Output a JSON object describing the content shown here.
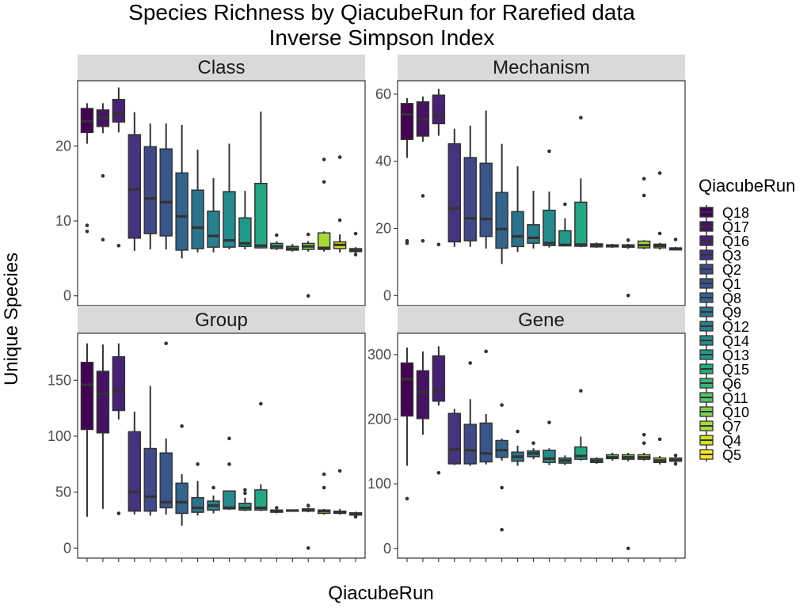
{
  "chart_data": {
    "type": "box",
    "title": "Species Richness by QiacubeRun for Rarefied data",
    "subtitle": "Inverse Simpson Index",
    "xlabel": "QiacubeRun",
    "ylabel": "Unique Species",
    "legend": {
      "title": "QiacubeRun",
      "position": "right",
      "entries": [
        {
          "name": "Q18",
          "color": "#440154"
        },
        {
          "name": "Q17",
          "color": "#471264"
        },
        {
          "name": "Q16",
          "color": "#482173"
        },
        {
          "name": "Q3",
          "color": "#45337f"
        },
        {
          "name": "Q2",
          "color": "#3e4a89"
        },
        {
          "name": "Q1",
          "color": "#3a548c"
        },
        {
          "name": "Q8",
          "color": "#32648e"
        },
        {
          "name": "Q9",
          "color": "#2c728e"
        },
        {
          "name": "Q12",
          "color": "#27808e"
        },
        {
          "name": "Q14",
          "color": "#228c8d"
        },
        {
          "name": "Q13",
          "color": "#1f9a8a"
        },
        {
          "name": "Q15",
          "color": "#22a884"
        },
        {
          "name": "Q6",
          "color": "#35b779"
        },
        {
          "name": "Q11",
          "color": "#54c568"
        },
        {
          "name": "Q10",
          "color": "#7ad151"
        },
        {
          "name": "Q7",
          "color": "#a5db36"
        },
        {
          "name": "Q4",
          "color": "#d2e21b"
        },
        {
          "name": "Q5",
          "color": "#fde725"
        }
      ]
    },
    "facets": [
      {
        "name": "Class",
        "ylim": [
          -1.3,
          28.7
        ],
        "yticks": [
          0,
          10,
          20
        ],
        "boxes": [
          {
            "fill": "#440154",
            "q1": 21.8,
            "med": 23.3,
            "q3": 25.0,
            "lo": 20.3,
            "hi": 25.7,
            "out": [
              9.4,
              8.6
            ]
          },
          {
            "fill": "#471264",
            "q1": 22.6,
            "med": 23.8,
            "q3": 24.8,
            "lo": 21.7,
            "hi": 25.7,
            "out": [
              16.0,
              7.5
            ]
          },
          {
            "fill": "#482173",
            "q1": 23.2,
            "med": 24.3,
            "q3": 26.2,
            "lo": 21.8,
            "hi": 27.8,
            "out": [
              6.7
            ]
          },
          {
            "fill": "#45337f",
            "q1": 7.7,
            "med": 14.2,
            "q3": 21.5,
            "lo": 6.0,
            "hi": 24.5,
            "out": []
          },
          {
            "fill": "#3e4a89",
            "q1": 8.3,
            "med": 13.0,
            "q3": 19.9,
            "lo": 6.2,
            "hi": 23.0,
            "out": []
          },
          {
            "fill": "#3a548c",
            "q1": 8.0,
            "med": 12.5,
            "q3": 19.6,
            "lo": 6.2,
            "hi": 23.0,
            "out": []
          },
          {
            "fill": "#32648e",
            "q1": 6.1,
            "med": 10.6,
            "q3": 16.4,
            "lo": 5.0,
            "hi": 22.8,
            "out": []
          },
          {
            "fill": "#2c728e",
            "q1": 6.3,
            "med": 9.1,
            "q3": 14.1,
            "lo": 5.8,
            "hi": 19.5,
            "out": []
          },
          {
            "fill": "#27808e",
            "q1": 6.5,
            "med": 8.0,
            "q3": 11.3,
            "lo": 5.8,
            "hi": 15.7,
            "out": []
          },
          {
            "fill": "#228c8d",
            "q1": 6.5,
            "med": 7.4,
            "q3": 13.9,
            "lo": 6.2,
            "hi": 20.3,
            "out": []
          },
          {
            "fill": "#1f9a8a",
            "q1": 6.6,
            "med": 7.0,
            "q3": 10.4,
            "lo": 6.2,
            "hi": 14.0,
            "out": []
          },
          {
            "fill": "#22a884",
            "q1": 6.4,
            "med": 6.7,
            "q3": 15.0,
            "lo": 6.3,
            "hi": 24.6,
            "out": []
          },
          {
            "fill": "#35b779",
            "q1": 6.3,
            "med": 6.6,
            "q3": 7.0,
            "lo": 6.1,
            "hi": 7.3,
            "out": [
              8.1
            ]
          },
          {
            "fill": "#54c568",
            "q1": 6.1,
            "med": 6.3,
            "q3": 6.6,
            "lo": 5.9,
            "hi": 6.9,
            "out": []
          },
          {
            "fill": "#7ad151",
            "q1": 6.2,
            "med": 6.6,
            "q3": 7.0,
            "lo": 5.9,
            "hi": 7.3,
            "out": [
              8.2,
              0
            ]
          },
          {
            "fill": "#a5db36",
            "q1": 6.2,
            "med": 6.4,
            "q3": 8.4,
            "lo": 5.9,
            "hi": 8.6,
            "out": [
              18.2,
              15.2
            ]
          },
          {
            "fill": "#d2e21b",
            "q1": 6.3,
            "med": 6.8,
            "q3": 7.2,
            "lo": 5.8,
            "hi": 8.2,
            "out": [
              18.5,
              10.1
            ]
          },
          {
            "fill": "#fde725",
            "q1": 5.9,
            "med": 6.1,
            "q3": 6.3,
            "lo": 5.6,
            "hi": 6.5,
            "out": [
              8.3,
              5.5
            ]
          }
        ]
      },
      {
        "name": "Mechanism",
        "ylim": [
          -3,
          64
        ],
        "yticks": [
          0,
          20,
          40,
          60
        ],
        "boxes": [
          {
            "fill": "#440154",
            "q1": 46.5,
            "med": 54.0,
            "q3": 57.2,
            "lo": 41.0,
            "hi": 58.8,
            "out": [
              16.3,
              15.6
            ]
          },
          {
            "fill": "#471264",
            "q1": 47.5,
            "med": 52.5,
            "q3": 57.7,
            "lo": 45.8,
            "hi": 59.3,
            "out": [
              29.7,
              16.3
            ]
          },
          {
            "fill": "#482173",
            "q1": 51.2,
            "med": 53.7,
            "q3": 59.7,
            "lo": 47.6,
            "hi": 61.6,
            "out": [
              15.2
            ]
          },
          {
            "fill": "#45337f",
            "q1": 16.0,
            "med": 26.0,
            "q3": 45.2,
            "lo": 14.5,
            "hi": 49.7,
            "out": []
          },
          {
            "fill": "#3e4a89",
            "q1": 16.3,
            "med": 23.0,
            "q3": 41.1,
            "lo": 14.5,
            "hi": 50.6,
            "out": []
          },
          {
            "fill": "#3a548c",
            "q1": 17.6,
            "med": 22.8,
            "q3": 39.4,
            "lo": 14.0,
            "hi": 55.1,
            "out": []
          },
          {
            "fill": "#32648e",
            "q1": 14.1,
            "med": 19.8,
            "q3": 30.7,
            "lo": 9.4,
            "hi": 45.2,
            "out": []
          },
          {
            "fill": "#2c728e",
            "q1": 14.6,
            "med": 17.6,
            "q3": 25.0,
            "lo": 13.0,
            "hi": 38.5,
            "out": []
          },
          {
            "fill": "#27808e",
            "q1": 15.6,
            "med": 17.2,
            "q3": 21.1,
            "lo": 14.0,
            "hi": 31.2,
            "out": []
          },
          {
            "fill": "#228c8d",
            "q1": 14.9,
            "med": 15.6,
            "q3": 25.4,
            "lo": 14.3,
            "hi": 31.0,
            "out": [
              43.0
            ]
          },
          {
            "fill": "#1f9a8a",
            "q1": 14.8,
            "med": 15.1,
            "q3": 19.3,
            "lo": 14.6,
            "hi": 23.0,
            "out": [
              27.2
            ]
          },
          {
            "fill": "#22a884",
            "q1": 14.7,
            "med": 15.2,
            "q3": 27.8,
            "lo": 14.4,
            "hi": 34.9,
            "out": [
              53.0
            ]
          },
          {
            "fill": "#35b779",
            "q1": 14.5,
            "med": 15.0,
            "q3": 15.4,
            "lo": 14.2,
            "hi": 15.8,
            "out": []
          },
          {
            "fill": "#54c568",
            "q1": 14.5,
            "med": 14.8,
            "q3": 15.1,
            "lo": 14.2,
            "hi": 15.4,
            "out": []
          },
          {
            "fill": "#7ad151",
            "q1": 14.4,
            "med": 14.7,
            "q3": 15.1,
            "lo": 13.9,
            "hi": 15.4,
            "out": [
              16.5,
              0
            ]
          },
          {
            "fill": "#a5db36",
            "q1": 14.2,
            "med": 15.0,
            "q3": 16.2,
            "lo": 13.8,
            "hi": 16.5,
            "out": [
              34.8,
              29.8
            ]
          },
          {
            "fill": "#d2e21b",
            "q1": 14.2,
            "med": 14.8,
            "q3": 15.3,
            "lo": 13.7,
            "hi": 15.7,
            "out": [
              36.5,
              18.5
            ]
          },
          {
            "fill": "#fde725",
            "q1": 13.6,
            "med": 13.9,
            "q3": 14.2,
            "lo": 13.4,
            "hi": 14.5,
            "out": [
              16.7
            ]
          }
        ]
      },
      {
        "name": "Group",
        "ylim": [
          -9,
          192
        ],
        "yticks": [
          0,
          50,
          100,
          150
        ],
        "boxes": [
          {
            "fill": "#440154",
            "q1": 106,
            "med": 146,
            "q3": 166,
            "lo": 28,
            "hi": 183,
            "out": []
          },
          {
            "fill": "#471264",
            "q1": 103,
            "med": 138,
            "q3": 158,
            "lo": 35,
            "hi": 182,
            "out": []
          },
          {
            "fill": "#482173",
            "q1": 123,
            "med": 141,
            "q3": 171,
            "lo": 115,
            "hi": 183,
            "out": [
              31
            ]
          },
          {
            "fill": "#45337f",
            "q1": 33,
            "med": 50,
            "q3": 104,
            "lo": 30,
            "hi": 122,
            "out": []
          },
          {
            "fill": "#3e4a89",
            "q1": 33,
            "med": 46,
            "q3": 89,
            "lo": 29,
            "hi": 145,
            "out": []
          },
          {
            "fill": "#3a548c",
            "q1": 36,
            "med": 41,
            "q3": 85,
            "lo": 30,
            "hi": 98,
            "out": [
              183
            ]
          },
          {
            "fill": "#32648e",
            "q1": 31,
            "med": 41,
            "q3": 58,
            "lo": 20,
            "hi": 66,
            "out": [
              109
            ]
          },
          {
            "fill": "#2c728e",
            "q1": 32,
            "med": 36,
            "q3": 45,
            "lo": 29,
            "hi": 60,
            "out": [
              75
            ]
          },
          {
            "fill": "#27808e",
            "q1": 34,
            "med": 38,
            "q3": 42,
            "lo": 31,
            "hi": 47,
            "out": [
              54
            ]
          },
          {
            "fill": "#228c8d",
            "q1": 35,
            "med": 36,
            "q3": 51,
            "lo": 34,
            "hi": 51,
            "out": [
              98,
              75
            ]
          },
          {
            "fill": "#1f9a8a",
            "q1": 34,
            "med": 36,
            "q3": 40,
            "lo": 33,
            "hi": 45,
            "out": [
              52,
              49
            ]
          },
          {
            "fill": "#22a884",
            "q1": 34,
            "med": 36,
            "q3": 52,
            "lo": 33,
            "hi": 57,
            "out": [
              129
            ]
          },
          {
            "fill": "#35b779",
            "q1": 32,
            "med": 33,
            "q3": 34,
            "lo": 31,
            "hi": 34.5,
            "out": [
              36
            ]
          },
          {
            "fill": "#54c568",
            "q1": 33,
            "med": 33.5,
            "q3": 34,
            "lo": 32.5,
            "hi": 34.5,
            "out": []
          },
          {
            "fill": "#7ad151",
            "q1": 33,
            "med": 34,
            "q3": 35,
            "lo": 32,
            "hi": 36,
            "out": [
              38,
              0
            ]
          },
          {
            "fill": "#a5db36",
            "q1": 31,
            "med": 33,
            "q3": 34,
            "lo": 30,
            "hi": 35,
            "out": [
              66,
              54
            ]
          },
          {
            "fill": "#d2e21b",
            "q1": 31,
            "med": 32,
            "q3": 33,
            "lo": 30,
            "hi": 35,
            "out": [
              69
            ]
          },
          {
            "fill": "#fde725",
            "q1": 29.5,
            "med": 30.5,
            "q3": 31.5,
            "lo": 28.5,
            "hi": 32.5,
            "out": [
              28
            ]
          }
        ]
      },
      {
        "name": "Gene",
        "ylim": [
          -15,
          333
        ],
        "yticks": [
          0,
          100,
          200,
          300
        ],
        "boxes": [
          {
            "fill": "#440154",
            "q1": 205,
            "med": 262,
            "q3": 287,
            "lo": 128,
            "hi": 311,
            "out": [
              77
            ]
          },
          {
            "fill": "#471264",
            "q1": 201,
            "med": 242,
            "q3": 275,
            "lo": 176,
            "hi": 305,
            "out": []
          },
          {
            "fill": "#482173",
            "q1": 228,
            "med": 244,
            "q3": 298,
            "lo": 221,
            "hi": 313,
            "out": [
              117
            ]
          },
          {
            "fill": "#45337f",
            "q1": 131,
            "med": 153,
            "q3": 209,
            "lo": 129,
            "hi": 216,
            "out": []
          },
          {
            "fill": "#3e4a89",
            "q1": 131,
            "med": 152,
            "q3": 192,
            "lo": 128,
            "hi": 231,
            "out": [
              287
            ]
          },
          {
            "fill": "#3a548c",
            "q1": 134,
            "med": 147,
            "q3": 194,
            "lo": 130,
            "hi": 208,
            "out": [
              305
            ]
          },
          {
            "fill": "#32648e",
            "q1": 141,
            "med": 152,
            "q3": 167,
            "lo": 136,
            "hi": 170,
            "out": [
              222,
              94,
              29
            ]
          },
          {
            "fill": "#2c728e",
            "q1": 135,
            "med": 142,
            "q3": 149,
            "lo": 128,
            "hi": 159,
            "out": [
              181
            ]
          },
          {
            "fill": "#27808e",
            "q1": 142,
            "med": 147,
            "q3": 151,
            "lo": 138,
            "hi": 155,
            "out": [
              163
            ]
          },
          {
            "fill": "#228c8d",
            "q1": 133,
            "med": 139,
            "q3": 152,
            "lo": 129,
            "hi": 155,
            "out": [
              195
            ]
          },
          {
            "fill": "#1f9a8a",
            "q1": 132,
            "med": 136,
            "q3": 140,
            "lo": 129,
            "hi": 144,
            "out": []
          },
          {
            "fill": "#22a884",
            "q1": 138,
            "med": 143,
            "q3": 157,
            "lo": 136,
            "hi": 173,
            "out": [
              244
            ]
          },
          {
            "fill": "#35b779",
            "q1": 133,
            "med": 136,
            "q3": 139,
            "lo": 131,
            "hi": 141,
            "out": []
          },
          {
            "fill": "#54c568",
            "q1": 139,
            "med": 141,
            "q3": 145,
            "lo": 136,
            "hi": 148,
            "out": []
          },
          {
            "fill": "#7ad151",
            "q1": 138,
            "med": 141,
            "q3": 145,
            "lo": 135,
            "hi": 148,
            "out": [
              0
            ]
          },
          {
            "fill": "#a5db36",
            "q1": 138,
            "med": 141,
            "q3": 145,
            "lo": 136,
            "hi": 148,
            "out": [
              176,
              163
            ]
          },
          {
            "fill": "#d2e21b",
            "q1": 133,
            "med": 136,
            "q3": 140,
            "lo": 130,
            "hi": 143,
            "out": [
              169
            ]
          },
          {
            "fill": "#fde725",
            "q1": 135,
            "med": 137,
            "q3": 140,
            "lo": 133,
            "hi": 141,
            "out": [
              144,
              131
            ]
          }
        ]
      }
    ]
  }
}
